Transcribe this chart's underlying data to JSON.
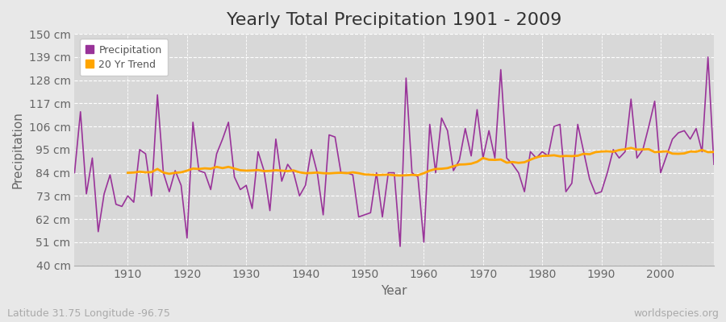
{
  "title": "Yearly Total Precipitation 1901 - 2009",
  "xlabel": "Year",
  "ylabel": "Precipitation",
  "footnote_left": "Latitude 31.75 Longitude -96.75",
  "footnote_right": "worldspecies.org",
  "years": [
    1901,
    1902,
    1903,
    1904,
    1905,
    1906,
    1907,
    1908,
    1909,
    1910,
    1911,
    1912,
    1913,
    1914,
    1915,
    1916,
    1917,
    1918,
    1919,
    1920,
    1921,
    1922,
    1923,
    1924,
    1925,
    1926,
    1927,
    1928,
    1929,
    1930,
    1931,
    1932,
    1933,
    1934,
    1935,
    1936,
    1937,
    1938,
    1939,
    1940,
    1941,
    1942,
    1943,
    1944,
    1945,
    1946,
    1947,
    1948,
    1949,
    1950,
    1951,
    1952,
    1953,
    1954,
    1955,
    1956,
    1957,
    1958,
    1959,
    1960,
    1961,
    1962,
    1963,
    1964,
    1965,
    1966,
    1967,
    1968,
    1969,
    1970,
    1971,
    1972,
    1973,
    1974,
    1975,
    1976,
    1977,
    1978,
    1979,
    1980,
    1981,
    1982,
    1983,
    1984,
    1985,
    1986,
    1987,
    1988,
    1989,
    1990,
    1991,
    1992,
    1993,
    1994,
    1995,
    1996,
    1997,
    1998,
    1999,
    2000,
    2001,
    2002,
    2003,
    2004,
    2005,
    2006,
    2007,
    2008,
    2009
  ],
  "precip": [
    84,
    113,
    74,
    91,
    56,
    74,
    83,
    69,
    68,
    73,
    70,
    95,
    93,
    73,
    121,
    84,
    75,
    85,
    78,
    53,
    108,
    85,
    84,
    76,
    93,
    100,
    108,
    82,
    76,
    78,
    67,
    94,
    85,
    66,
    100,
    80,
    88,
    84,
    73,
    78,
    95,
    84,
    64,
    102,
    101,
    84,
    84,
    83,
    63,
    64,
    65,
    84,
    63,
    84,
    84,
    49,
    129,
    84,
    82,
    51,
    107,
    84,
    110,
    104,
    85,
    90,
    105,
    92,
    114,
    91,
    104,
    91,
    133,
    91,
    88,
    84,
    75,
    94,
    91,
    94,
    92,
    106,
    107,
    75,
    79,
    107,
    94,
    81,
    74,
    75,
    84,
    95,
    91,
    94,
    119,
    91,
    95,
    106,
    118,
    84,
    92,
    100,
    103,
    104,
    100,
    105,
    94,
    139,
    88
  ],
  "trend_start_year": 1910,
  "trend": [
    84.0,
    84.1,
    84.5,
    84.2,
    84.3,
    85.8,
    84.1,
    83.5,
    84.0,
    84.2,
    85.0,
    86.0,
    85.8,
    86.1,
    85.9,
    86.8,
    86.2,
    86.8,
    86.0,
    85.2,
    85.0,
    85.1,
    85.3,
    84.8,
    84.9,
    85.2,
    85.0,
    84.8,
    85.1,
    84.2,
    83.8,
    83.9,
    84.1,
    83.8,
    83.7,
    83.9,
    84.0,
    83.8,
    84.2,
    83.8,
    83.2,
    83.1,
    82.9,
    83.0,
    83.1,
    82.8,
    82.7,
    82.8,
    83.0,
    82.8,
    83.8,
    85.0,
    85.8,
    85.9,
    86.2,
    87.1,
    87.9,
    88.0,
    88.3,
    89.2,
    91.0,
    90.2,
    90.1,
    90.3,
    88.8,
    89.1,
    88.7,
    89.0,
    90.2,
    91.3,
    92.0,
    92.1,
    92.3,
    91.8,
    92.0,
    91.9,
    92.1,
    93.0,
    92.8,
    93.8,
    94.1,
    94.2,
    94.0,
    94.8,
    95.2,
    95.8,
    95.0,
    95.1,
    95.2,
    93.8,
    94.0,
    94.2,
    93.1,
    93.0,
    93.2,
    94.1,
    94.0,
    94.8,
    93.8,
    93.9
  ],
  "precip_color": "#993399",
  "trend_color": "#FFA500",
  "fig_bg_color": "#e8e8e8",
  "plot_bg_color": "#d8d8d8",
  "grid_color": "#ffffff",
  "ylim": [
    40,
    150
  ],
  "yticks": [
    40,
    51,
    62,
    73,
    84,
    95,
    106,
    117,
    128,
    139,
    150
  ],
  "ytick_labels": [
    "40 cm",
    "51 cm",
    "62 cm",
    "73 cm",
    "84 cm",
    "95 cm",
    "106 cm",
    "117 cm",
    "128 cm",
    "139 cm",
    "150 cm"
  ],
  "xticks": [
    1910,
    1920,
    1930,
    1940,
    1950,
    1960,
    1970,
    1980,
    1990,
    2000
  ],
  "xlim_min": 1901,
  "xlim_max": 2009,
  "title_fontsize": 16,
  "axis_label_fontsize": 11,
  "tick_fontsize": 10,
  "footnote_fontsize": 9,
  "legend_fontsize": 9
}
